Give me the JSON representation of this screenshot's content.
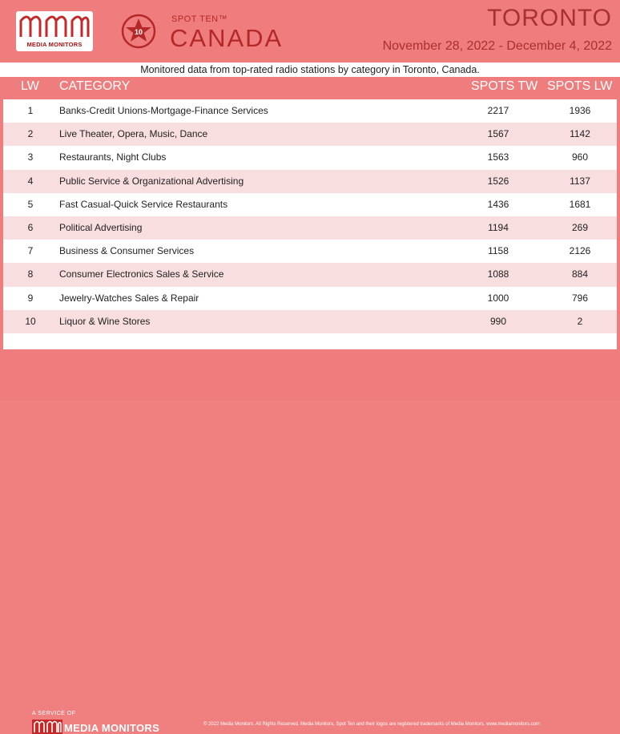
{
  "header": {
    "logo_text": "MEDIA MONITORS",
    "badge_number": "10",
    "spot_ten_label": "SPOT TEN™",
    "country": "CANADA",
    "city": "TORONTO",
    "dates": "November 28, 2022 - December 4, 2022"
  },
  "subtitle": "Monitored data from top-rated radio stations by category in Toronto, Canada.",
  "table": {
    "headers": {
      "lw": "LW",
      "category": "CATEGORY",
      "spots_tw": "SPOTS TW",
      "spots_lw": "SPOTS LW"
    },
    "rows": [
      {
        "lw": "1",
        "category": "Banks-Credit Unions-Mortgage-Finance Services",
        "spots_tw": "2217",
        "spots_lw": "1936"
      },
      {
        "lw": "2",
        "category": "Live Theater, Opera, Music, Dance",
        "spots_tw": "1567",
        "spots_lw": "1142"
      },
      {
        "lw": "3",
        "category": "Restaurants, Night Clubs",
        "spots_tw": "1563",
        "spots_lw": "960"
      },
      {
        "lw": "4",
        "category": "Public Service & Organizational Advertising",
        "spots_tw": "1526",
        "spots_lw": "1137"
      },
      {
        "lw": "5",
        "category": "Fast Casual-Quick Service Restaurants",
        "spots_tw": "1436",
        "spots_lw": "1681"
      },
      {
        "lw": "6",
        "category": "Political Advertising",
        "spots_tw": "1194",
        "spots_lw": "269"
      },
      {
        "lw": "7",
        "category": "Business & Consumer Services",
        "spots_tw": "1158",
        "spots_lw": "2126"
      },
      {
        "lw": "8",
        "category": "Consumer Electronics Sales & Service",
        "spots_tw": "1088",
        "spots_lw": "884"
      },
      {
        "lw": "9",
        "category": "Jewelry-Watches Sales & Repair",
        "spots_tw": "1000",
        "spots_lw": "796"
      },
      {
        "lw": "10",
        "category": "Liquor & Wine Stores",
        "spots_tw": "990",
        "spots_lw": "2"
      }
    ]
  },
  "footer": {
    "service_label": "A SERVICE OF",
    "brand": "MEDIA MONITORS",
    "copyright": "© 2022 Media Monitors. All Rights Reserved. Media Monitors, Spot Ten and their logos are registered trademarks of Media Monitors. www.mediamonitors.com"
  },
  "colors": {
    "background": "#f07d7d",
    "accent": "#b52828",
    "row_alt": "#f8dede"
  }
}
